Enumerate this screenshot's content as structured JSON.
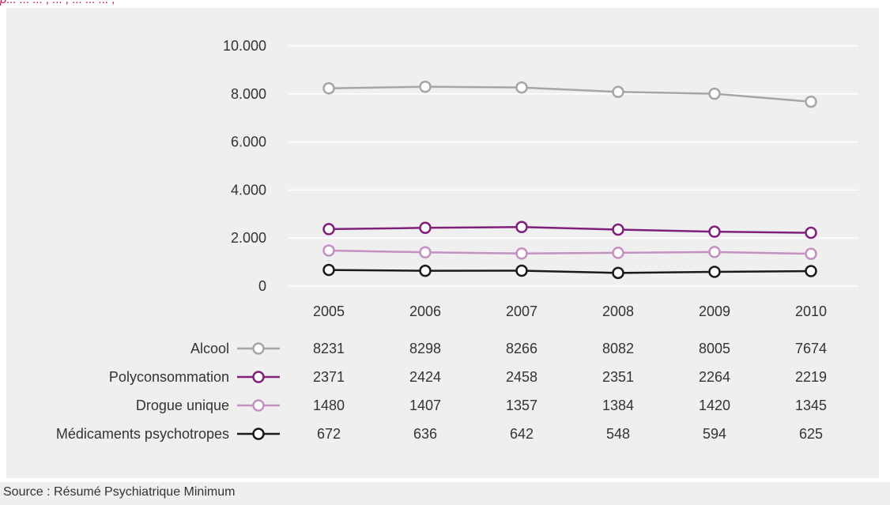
{
  "header_fragment": "p... ... ... , ... , ... ... ... ,",
  "source": "Source : Résumé Psychiatrique Minimum",
  "chart_data": {
    "type": "line",
    "title": "",
    "xlabel": "",
    "ylabel": "",
    "categories": [
      "2005",
      "2006",
      "2007",
      "2008",
      "2009",
      "2010"
    ],
    "ylim": [
      0,
      10000
    ],
    "yticks": [
      0,
      2000,
      4000,
      6000,
      8000,
      10000
    ],
    "ytick_labels": [
      "0",
      "2.000",
      "4.000",
      "6.000",
      "8.000",
      "10.000"
    ],
    "grid": true,
    "legend_placement": "bottom (data table)",
    "series": [
      {
        "name": "Alcool",
        "values": [
          8231,
          8298,
          8266,
          8082,
          8005,
          7674
        ],
        "color": "#a6a6a6"
      },
      {
        "name": "Polyconsommation",
        "values": [
          2371,
          2424,
          2458,
          2351,
          2264,
          2219
        ],
        "color": "#80207a"
      },
      {
        "name": "Drogue unique",
        "values": [
          1480,
          1407,
          1357,
          1384,
          1420,
          1345
        ],
        "color": "#c491c0"
      },
      {
        "name": "Médicaments psychotropes",
        "values": [
          672,
          636,
          642,
          548,
          594,
          625
        ],
        "color": "#1a1a1a"
      }
    ]
  }
}
